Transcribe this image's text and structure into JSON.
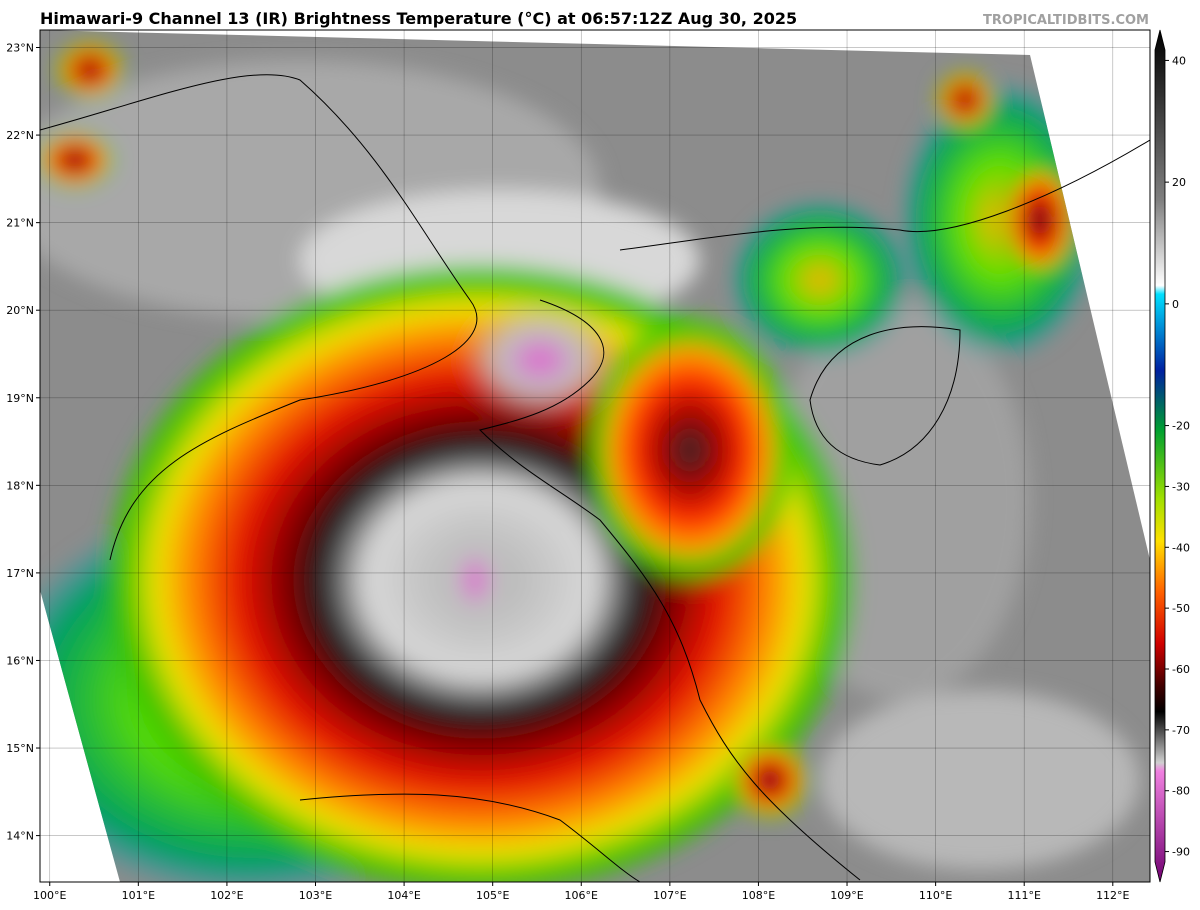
{
  "header": {
    "title": "Himawari-9 Channel 13 (IR) Brightness Temperature (°C) at 06:57:12Z Aug 30, 2025",
    "watermark": "TROPICALTIDBITS.COM"
  },
  "map": {
    "latlim": [
      13.47,
      23.2
    ],
    "lonlim": [
      99.89,
      112.42
    ],
    "lat_ticks": [
      {
        "value": 23,
        "label": "23°N"
      },
      {
        "value": 22,
        "label": "22°N"
      },
      {
        "value": 21,
        "label": "21°N"
      },
      {
        "value": 20,
        "label": "20°N"
      },
      {
        "value": 19,
        "label": "19°N"
      },
      {
        "value": 18,
        "label": "18°N"
      },
      {
        "value": 17,
        "label": "17°N"
      },
      {
        "value": 16,
        "label": "16°N"
      },
      {
        "value": 15,
        "label": "15°N"
      },
      {
        "value": 14,
        "label": "14°N"
      }
    ],
    "lon_ticks": [
      {
        "value": 100,
        "label": "100°E"
      },
      {
        "value": 101,
        "label": "101°E"
      },
      {
        "value": 102,
        "label": "102°E"
      },
      {
        "value": 103,
        "label": "103°E"
      },
      {
        "value": 104,
        "label": "104°E"
      },
      {
        "value": 105,
        "label": "105°E"
      },
      {
        "value": 106,
        "label": "106°E"
      },
      {
        "value": 107,
        "label": "107°E"
      },
      {
        "value": 108,
        "label": "108°E"
      },
      {
        "value": 109,
        "label": "109°E"
      },
      {
        "value": 110,
        "label": "110°E"
      },
      {
        "value": 111,
        "label": "111°E"
      },
      {
        "value": 112,
        "label": "112°E"
      }
    ]
  },
  "colorbar": {
    "lim": [
      -95,
      45
    ],
    "ticks": [
      40,
      20,
      0,
      -20,
      -30,
      -40,
      -50,
      -60,
      -70,
      -80,
      -90
    ]
  }
}
